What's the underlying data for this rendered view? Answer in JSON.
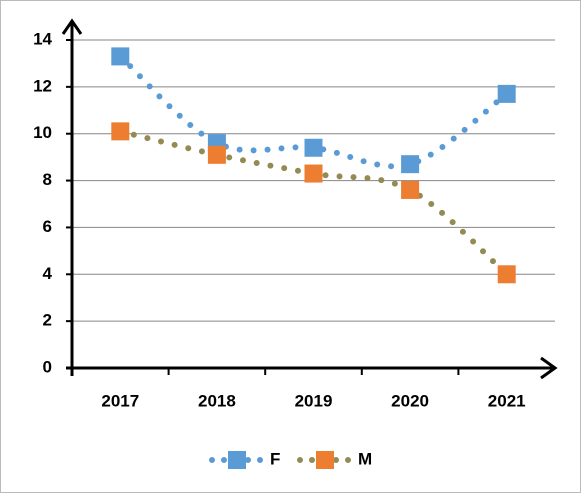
{
  "chart_data": {
    "type": "line",
    "categories": [
      "2017",
      "2018",
      "2019",
      "2020",
      "2021"
    ],
    "series": [
      {
        "name": "F",
        "color": "#5b9bd5",
        "line_color": "#5b9bd5",
        "values": [
          13.3,
          9.6,
          9.4,
          8.7,
          11.7
        ]
      },
      {
        "name": "M",
        "color": "#ed7d31",
        "line_color": "#948a54",
        "values": [
          10.1,
          9.1,
          8.3,
          7.6,
          4.0
        ]
      }
    ],
    "ylim": [
      0,
      14
    ],
    "yticks": [
      0,
      2,
      4,
      6,
      8,
      10,
      12,
      14
    ],
    "grid": true,
    "legend": "bottom"
  }
}
